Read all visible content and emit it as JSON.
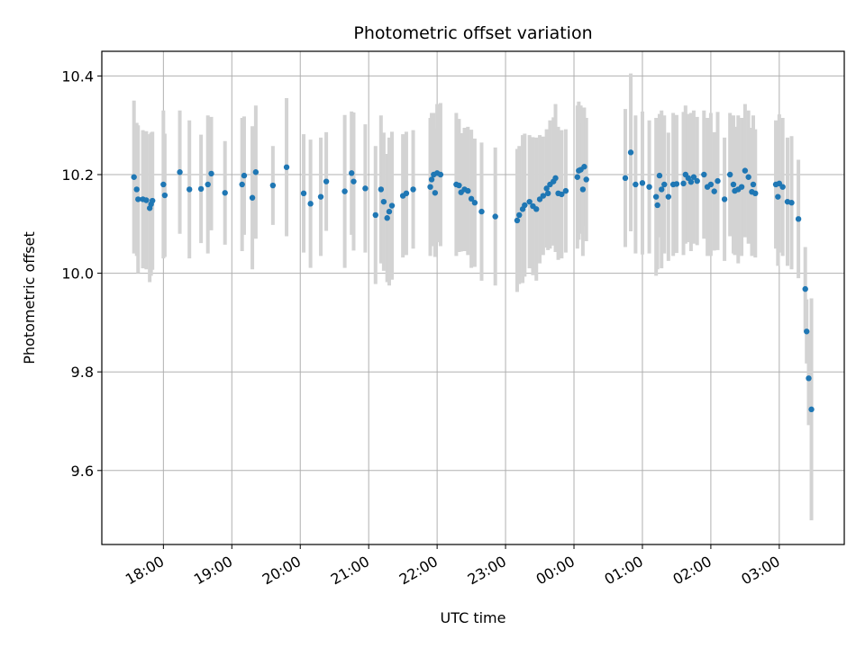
{
  "chart_data": {
    "type": "scatter",
    "title": "Photometric offset variation",
    "xlabel": "UTC time",
    "ylabel": "Photometric offset",
    "x_unit": "hours since 00:00 UTC (negative = previous evening)",
    "xlim": [
      -6.9,
      3.95
    ],
    "ylim": [
      9.45,
      10.45
    ],
    "grid": true,
    "x_ticks": [
      -6,
      -5,
      -4,
      -3,
      -2,
      -1,
      0,
      1,
      2,
      3
    ],
    "x_tick_labels": [
      "18:00",
      "19:00",
      "20:00",
      "21:00",
      "22:00",
      "23:00",
      "00:00",
      "01:00",
      "02:00",
      "03:00"
    ],
    "y_ticks": [
      9.6,
      9.8,
      10.0,
      10.2,
      10.4
    ],
    "y_tick_labels": [
      "9.6",
      "9.8",
      "10.0",
      "10.2",
      "10.4"
    ],
    "colors": {
      "point": "#1f77b4",
      "errorbar": "#d3d3d3",
      "grid": "#b0b0b0"
    },
    "series": [
      {
        "points": [
          [
            -6.43,
            10.195,
            0.155
          ],
          [
            -6.39,
            10.17,
            0.135
          ],
          [
            -6.37,
            10.15,
            0.15
          ],
          [
            -6.3,
            10.15,
            0.14
          ],
          [
            -6.25,
            10.148,
            0.14
          ],
          [
            -6.2,
            10.132,
            0.15
          ],
          [
            -6.18,
            10.14,
            0.145
          ],
          [
            -6.16,
            10.147,
            0.14
          ],
          [
            -6.0,
            10.18,
            0.15
          ],
          [
            -5.98,
            10.158,
            0.125
          ],
          [
            -5.76,
            10.205,
            0.125
          ],
          [
            -5.62,
            10.17,
            0.14
          ],
          [
            -5.45,
            10.171,
            0.11
          ],
          [
            -5.35,
            10.18,
            0.14
          ],
          [
            -5.3,
            10.202,
            0.115
          ],
          [
            -5.1,
            10.163,
            0.105
          ],
          [
            -4.85,
            10.18,
            0.135
          ],
          [
            -4.82,
            10.198,
            0.12
          ],
          [
            -4.7,
            10.153,
            0.145
          ],
          [
            -4.65,
            10.205,
            0.135
          ],
          [
            -4.4,
            10.178,
            0.08
          ],
          [
            -4.2,
            10.215,
            0.14
          ],
          [
            -3.95,
            10.162,
            0.12
          ],
          [
            -3.85,
            10.141,
            0.13
          ],
          [
            -3.7,
            10.155,
            0.12
          ],
          [
            -3.62,
            10.186,
            0.1
          ],
          [
            -3.35,
            10.166,
            0.155
          ],
          [
            -3.25,
            10.203,
            0.125
          ],
          [
            -3.22,
            10.186,
            0.14
          ],
          [
            -3.05,
            10.172,
            0.13
          ],
          [
            -2.9,
            10.118,
            0.14
          ],
          [
            -2.82,
            10.17,
            0.15
          ],
          [
            -2.78,
            10.145,
            0.14
          ],
          [
            -2.73,
            10.112,
            0.13
          ],
          [
            -2.7,
            10.125,
            0.15
          ],
          [
            -2.66,
            10.137,
            0.15
          ],
          [
            -2.5,
            10.157,
            0.125
          ],
          [
            -2.45,
            10.162,
            0.125
          ],
          [
            -2.35,
            10.17,
            0.12
          ],
          [
            -2.1,
            10.175,
            0.14
          ],
          [
            -2.08,
            10.19,
            0.135
          ],
          [
            -2.05,
            10.2,
            0.125
          ],
          [
            -2.03,
            10.163,
            0.13
          ],
          [
            -2.0,
            10.203,
            0.14
          ],
          [
            -1.95,
            10.2,
            0.145
          ],
          [
            -1.72,
            10.18,
            0.145
          ],
          [
            -1.68,
            10.178,
            0.135
          ],
          [
            -1.65,
            10.164,
            0.12
          ],
          [
            -1.6,
            10.17,
            0.125
          ],
          [
            -1.55,
            10.167,
            0.13
          ],
          [
            -1.5,
            10.151,
            0.14
          ],
          [
            -1.45,
            10.143,
            0.13
          ],
          [
            -1.35,
            10.125,
            0.14
          ],
          [
            -1.15,
            10.115,
            0.14
          ],
          [
            -0.83,
            10.107,
            0.145
          ],
          [
            -0.8,
            10.118,
            0.14
          ],
          [
            -0.75,
            10.13,
            0.15
          ],
          [
            -0.72,
            10.138,
            0.145
          ],
          [
            -0.65,
            10.145,
            0.135
          ],
          [
            -0.6,
            10.136,
            0.14
          ],
          [
            -0.55,
            10.13,
            0.145
          ],
          [
            -0.5,
            10.15,
            0.13
          ],
          [
            -0.45,
            10.157,
            0.12
          ],
          [
            -0.4,
            10.172,
            0.12
          ],
          [
            -0.38,
            10.162,
            0.115
          ],
          [
            -0.35,
            10.18,
            0.13
          ],
          [
            -0.3,
            10.186,
            0.13
          ],
          [
            -0.27,
            10.193,
            0.15
          ],
          [
            -0.23,
            10.162,
            0.135
          ],
          [
            -0.18,
            10.16,
            0.13
          ],
          [
            -0.12,
            10.167,
            0.125
          ],
          [
            0.05,
            10.195,
            0.145
          ],
          [
            0.07,
            10.208,
            0.14
          ],
          [
            0.1,
            10.21,
            0.13
          ],
          [
            0.13,
            10.17,
            0.135
          ],
          [
            0.15,
            10.216,
            0.12
          ],
          [
            0.18,
            10.19,
            0.125
          ],
          [
            0.75,
            10.193,
            0.14
          ],
          [
            0.83,
            10.245,
            0.16
          ],
          [
            0.9,
            10.18,
            0.14
          ],
          [
            1.0,
            10.183,
            0.145
          ],
          [
            1.1,
            10.175,
            0.135
          ],
          [
            1.2,
            10.155,
            0.16
          ],
          [
            1.22,
            10.138,
            0.13
          ],
          [
            1.25,
            10.198,
            0.125
          ],
          [
            1.28,
            10.17,
            0.16
          ],
          [
            1.32,
            10.18,
            0.14
          ],
          [
            1.38,
            10.155,
            0.13
          ],
          [
            1.45,
            10.18,
            0.145
          ],
          [
            1.5,
            10.181,
            0.14
          ],
          [
            1.6,
            10.182,
            0.145
          ],
          [
            1.63,
            10.2,
            0.14
          ],
          [
            1.67,
            10.193,
            0.13
          ],
          [
            1.71,
            10.185,
            0.14
          ],
          [
            1.75,
            10.195,
            0.135
          ],
          [
            1.8,
            10.187,
            0.13
          ],
          [
            1.9,
            10.2,
            0.13
          ],
          [
            1.95,
            10.175,
            0.14
          ],
          [
            2.0,
            10.18,
            0.145
          ],
          [
            2.05,
            10.166,
            0.12
          ],
          [
            2.1,
            10.187,
            0.14
          ],
          [
            2.2,
            10.15,
            0.125
          ],
          [
            2.28,
            10.2,
            0.125
          ],
          [
            2.33,
            10.18,
            0.14
          ],
          [
            2.35,
            10.167,
            0.13
          ],
          [
            2.4,
            10.17,
            0.15
          ],
          [
            2.45,
            10.175,
            0.14
          ],
          [
            2.5,
            10.208,
            0.135
          ],
          [
            2.55,
            10.195,
            0.135
          ],
          [
            2.6,
            10.165,
            0.13
          ],
          [
            2.62,
            10.18,
            0.14
          ],
          [
            2.65,
            10.162,
            0.13
          ],
          [
            2.95,
            10.18,
            0.13
          ],
          [
            2.98,
            10.155,
            0.14
          ],
          [
            3.0,
            10.182,
            0.14
          ],
          [
            3.05,
            10.175,
            0.14
          ],
          [
            3.12,
            10.145,
            0.13
          ],
          [
            3.18,
            10.143,
            0.135
          ],
          [
            3.28,
            10.11,
            0.12
          ],
          [
            3.38,
            9.968,
            0.085
          ],
          [
            3.4,
            9.882,
            0.065
          ],
          [
            3.43,
            9.787,
            0.095
          ],
          [
            3.47,
            9.724,
            0.225
          ]
        ]
      }
    ]
  }
}
